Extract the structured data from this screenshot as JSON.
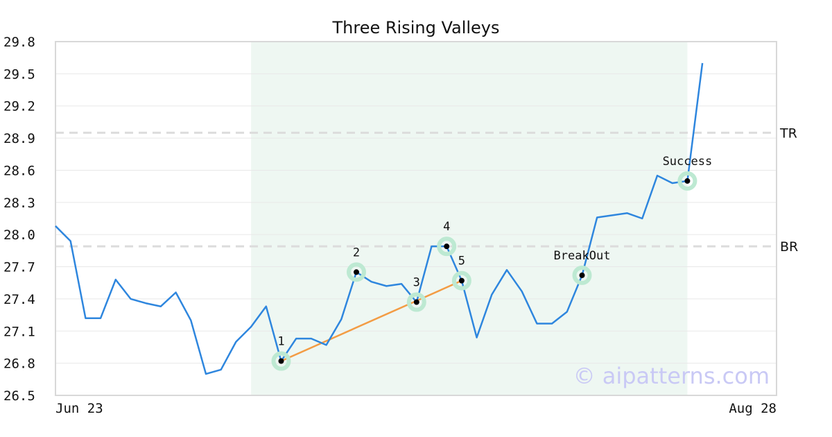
{
  "chart_data": {
    "type": "line",
    "title": "Three Rising Valleys",
    "ylim": [
      26.5,
      29.8
    ],
    "y_ticks": [
      "26.5",
      "26.8",
      "27.1",
      "27.4",
      "27.7",
      "28.0",
      "28.3",
      "28.6",
      "28.9",
      "29.2",
      "29.5",
      "29.8"
    ],
    "x_labels": [
      {
        "label": "Jun 23",
        "index": 0
      },
      {
        "label": "Aug 28",
        "index": 48
      }
    ],
    "grid": true,
    "series": [
      {
        "values": [
          28.08,
          27.94,
          27.22,
          27.22,
          27.58,
          27.4,
          27.36,
          27.33,
          27.46,
          27.2,
          26.7,
          26.74,
          27.0,
          27.14,
          27.33,
          26.82,
          27.03,
          27.03,
          26.97,
          27.21,
          27.65,
          27.56,
          27.52,
          27.54,
          27.37,
          27.89,
          27.89,
          27.57,
          27.04,
          27.44,
          27.67,
          27.47,
          27.17,
          27.17,
          27.28,
          27.62,
          28.16,
          28.18,
          28.2,
          28.15,
          28.55,
          28.48,
          28.5,
          29.6
        ],
        "color": "#2e86de"
      }
    ],
    "highlight_range": {
      "start_index": 13,
      "end_index": 42
    },
    "levels": [
      {
        "label": "TR",
        "value": 28.95
      },
      {
        "label": "BR",
        "value": 27.89
      }
    ],
    "trendline": {
      "points": [
        {
          "index": 15,
          "value": 26.82
        },
        {
          "index": 27,
          "value": 27.57
        }
      ],
      "color": "#f39c44"
    },
    "points": [
      {
        "label": "1",
        "index": 15,
        "value": 26.82
      },
      {
        "label": "2",
        "index": 20,
        "value": 27.65
      },
      {
        "label": "3",
        "index": 24,
        "value": 27.37
      },
      {
        "label": "4",
        "index": 26,
        "value": 27.89
      },
      {
        "label": "5",
        "index": 27,
        "value": 27.57
      },
      {
        "label": "BreakOut",
        "index": 35,
        "value": 27.62
      },
      {
        "label": "Success",
        "index": 42,
        "value": 28.5
      }
    ],
    "watermark": "© aipatterns.com"
  }
}
